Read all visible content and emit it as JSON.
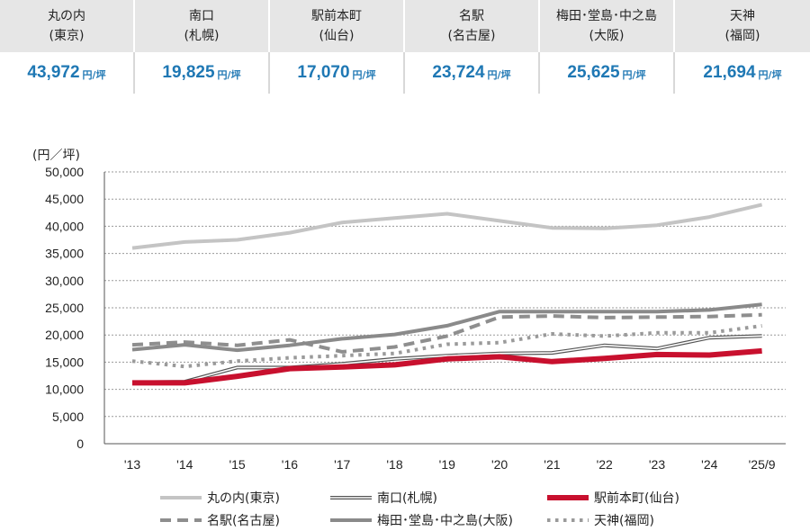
{
  "summary": [
    {
      "name": "丸の内",
      "city": "(東京)",
      "value": "43,972",
      "unit": "円/坪"
    },
    {
      "name": "南口",
      "city": "(札幌)",
      "value": "19,825",
      "unit": "円/坪"
    },
    {
      "name": "駅前本町",
      "city": "(仙台)",
      "value": "17,070",
      "unit": "円/坪"
    },
    {
      "name": "名駅",
      "city": "(名古屋)",
      "value": "23,724",
      "unit": "円/坪"
    },
    {
      "name": "梅田･堂島･中之島",
      "city": "(大阪)",
      "value": "25,625",
      "unit": "円/坪"
    },
    {
      "name": "天神",
      "city": "(福岡)",
      "value": "21,694",
      "unit": "円/坪"
    }
  ],
  "colors": {
    "accent": "#1f78b4",
    "header_bg": "#e6e6e6",
    "highlight": "#c8102e"
  },
  "chart_data": {
    "type": "line",
    "title": "",
    "ylabel": "(円／坪)",
    "xlabel": "",
    "ylim": [
      0,
      50000
    ],
    "yticks": [
      0,
      5000,
      10000,
      15000,
      20000,
      25000,
      30000,
      35000,
      40000,
      45000,
      50000
    ],
    "ytick_labels": [
      "0",
      "5,000",
      "10,000",
      "15,000",
      "20,000",
      "25,000",
      "30,000",
      "35,000",
      "40,000",
      "45,000",
      "50,000"
    ],
    "categories": [
      "'13",
      "'14",
      "'15",
      "'16",
      "'17",
      "'18",
      "'19",
      "'20",
      "'21",
      "'22",
      "'23",
      "'24",
      "'25/9"
    ],
    "grid": true,
    "legend_position": "bottom",
    "series": [
      {
        "name": "丸の内(東京)",
        "style": "solid-light-gray",
        "values": [
          36000,
          37100,
          37500,
          38800,
          40700,
          41500,
          42300,
          41000,
          39700,
          39600,
          40200,
          41700,
          43972
        ]
      },
      {
        "name": "南口(札幌)",
        "style": "double-line",
        "values": [
          11300,
          11400,
          14000,
          14000,
          14700,
          15600,
          16200,
          16600,
          16700,
          18100,
          17500,
          19500,
          19825
        ]
      },
      {
        "name": "駅前本町(仙台)",
        "style": "thick-red",
        "values": [
          11200,
          11200,
          12400,
          13800,
          14100,
          14500,
          15600,
          16000,
          15100,
          15700,
          16400,
          16300,
          17070
        ]
      },
      {
        "name": "名駅(名古屋)",
        "style": "dashed-gray",
        "values": [
          18200,
          18700,
          18100,
          19100,
          16900,
          17800,
          19800,
          23300,
          23500,
          23200,
          23300,
          23400,
          23724
        ]
      },
      {
        "name": "梅田･堂島･中之島(大阪)",
        "style": "solid-dark-gray",
        "values": [
          17300,
          18200,
          17200,
          18100,
          19300,
          20100,
          21700,
          24300,
          24300,
          24300,
          24300,
          24600,
          25625
        ]
      },
      {
        "name": "天神(福岡)",
        "style": "dotted-gray",
        "values": [
          15200,
          14200,
          15200,
          15800,
          16200,
          16600,
          18300,
          18600,
          20200,
          19800,
          20400,
          20400,
          21694
        ]
      }
    ]
  }
}
